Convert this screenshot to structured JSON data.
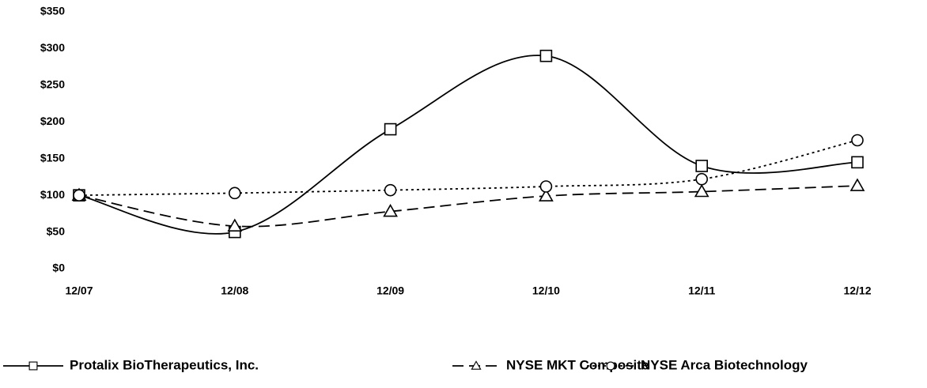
{
  "chart_data": {
    "type": "line",
    "categories": [
      "12/07",
      "12/08",
      "12/09",
      "12/10",
      "12/11",
      "12/12"
    ],
    "ylim": [
      0,
      350
    ],
    "yticks": [
      {
        "value": 0,
        "label": "$0"
      },
      {
        "value": 50,
        "label": "$50"
      },
      {
        "value": 100,
        "label": "$100"
      },
      {
        "value": 150,
        "label": "$150"
      },
      {
        "value": 200,
        "label": "$200"
      },
      {
        "value": 250,
        "label": "$250"
      },
      {
        "value": 300,
        "label": "$300"
      },
      {
        "value": 350,
        "label": "$350"
      }
    ],
    "smooth": true,
    "legend": "bottom",
    "series": [
      {
        "name": "Protalix BioTherapeutics, Inc.",
        "color": "#000000",
        "line_style": "solid",
        "marker": "square",
        "values": [
          100,
          50,
          190,
          290,
          140,
          145
        ]
      },
      {
        "name": "NYSE MKT Composite",
        "color": "#000000",
        "line_style": "dashed",
        "marker": "triangle",
        "values": [
          100,
          58,
          78,
          99,
          105,
          113
        ]
      },
      {
        "name": "NYSE Arca Biotechnology",
        "color": "#000000",
        "line_style": "dotted",
        "marker": "circle",
        "values": [
          100,
          103,
          107,
          112,
          122,
          175
        ]
      }
    ]
  }
}
